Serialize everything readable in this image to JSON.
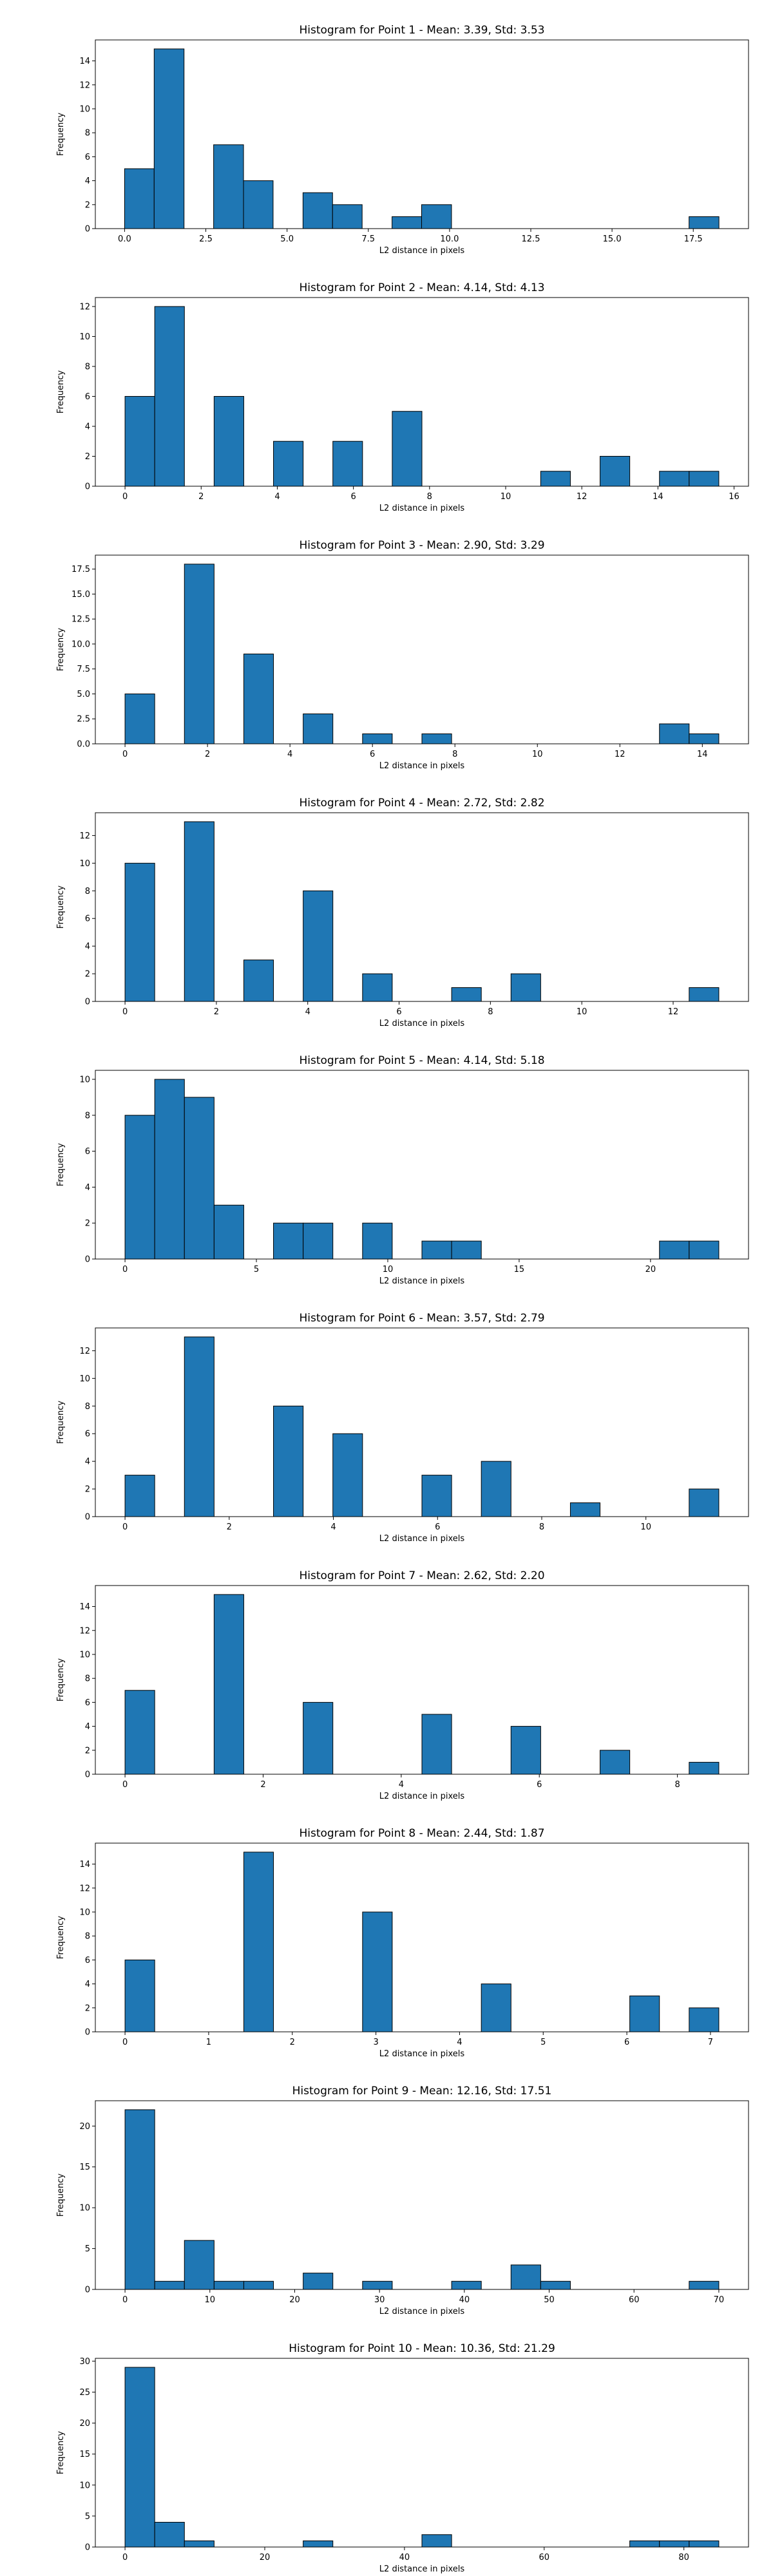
{
  "chart_data": [
    {
      "type": "bar",
      "title": "Histogram for Point 1 - Mean: 3.39, Std: 3.53",
      "xlabel": "L2 distance in pixels",
      "ylabel": "Frequency",
      "bin_edges": [
        0.0,
        0.91,
        1.83,
        2.74,
        3.66,
        4.57,
        5.49,
        6.4,
        7.31,
        8.23,
        9.14,
        10.06,
        10.97,
        11.89,
        12.8,
        13.71,
        14.63,
        15.54,
        16.46,
        17.37,
        18.29
      ],
      "values": [
        5,
        15,
        0,
        7,
        4,
        0,
        3,
        2,
        0,
        1,
        2,
        0,
        0,
        0,
        0,
        0,
        0,
        0,
        0,
        1
      ],
      "xlim": [
        -0.9,
        19.2
      ],
      "ylim": [
        0,
        15.75
      ],
      "xticks": [
        0.0,
        2.5,
        5.0,
        7.5,
        10.0,
        12.5,
        15.0,
        17.5
      ],
      "xtick_labels": [
        "0.0",
        "2.5",
        "5.0",
        "7.5",
        "10.0",
        "12.5",
        "15.0",
        "17.5"
      ],
      "yticks": [
        0,
        2,
        4,
        6,
        8,
        10,
        12,
        14
      ],
      "ytick_labels": [
        "0",
        "2",
        "4",
        "6",
        "8",
        "10",
        "12",
        "14"
      ]
    },
    {
      "type": "bar",
      "title": "Histogram for Point 2 - Mean: 4.14, Std: 4.13",
      "xlabel": "L2 distance in pixels",
      "ylabel": "Frequency",
      "bin_edges": [
        0.0,
        0.78,
        1.56,
        2.34,
        3.12,
        3.9,
        4.68,
        5.46,
        6.24,
        7.02,
        7.8,
        8.58,
        9.36,
        10.14,
        10.92,
        11.7,
        12.48,
        13.26,
        14.04,
        14.82,
        15.6
      ],
      "values": [
        6,
        12,
        0,
        6,
        0,
        3,
        0,
        3,
        0,
        5,
        0,
        0,
        0,
        0,
        1,
        0,
        2,
        0,
        1,
        1
      ],
      "xlim": [
        -0.78,
        16.38
      ],
      "ylim": [
        0,
        12.6
      ],
      "xticks": [
        0,
        2,
        4,
        6,
        8,
        10,
        12,
        14,
        16
      ],
      "xtick_labels": [
        "0",
        "2",
        "4",
        "6",
        "8",
        "10",
        "12",
        "14",
        "16"
      ],
      "yticks": [
        0,
        2,
        4,
        6,
        8,
        10,
        12
      ],
      "ytick_labels": [
        "0",
        "2",
        "4",
        "6",
        "8",
        "10",
        "12"
      ]
    },
    {
      "type": "bar",
      "title": "Histogram for Point 3 - Mean: 2.90, Std: 3.29",
      "xlabel": "L2 distance in pixels",
      "ylabel": "Frequency",
      "bin_edges": [
        0.0,
        0.72,
        1.44,
        2.16,
        2.88,
        3.6,
        4.32,
        5.04,
        5.76,
        6.48,
        7.2,
        7.92,
        8.64,
        9.36,
        10.08,
        10.8,
        11.52,
        12.24,
        12.96,
        13.68,
        14.4
      ],
      "values": [
        5,
        0,
        18,
        0,
        9,
        0,
        3,
        0,
        1,
        0,
        1,
        0,
        0,
        0,
        0,
        0,
        0,
        0,
        2,
        1
      ],
      "xlim": [
        -0.72,
        15.12
      ],
      "ylim": [
        0,
        18.9
      ],
      "xticks": [
        0,
        2,
        4,
        6,
        8,
        10,
        12,
        14
      ],
      "xtick_labels": [
        "0",
        "2",
        "4",
        "6",
        "8",
        "10",
        "12",
        "14"
      ],
      "yticks": [
        0,
        2.5,
        5,
        7.5,
        10,
        12.5,
        15,
        17.5
      ],
      "ytick_labels": [
        "0.0",
        "2.5",
        "5.0",
        "7.5",
        "10.0",
        "12.5",
        "15.0",
        "17.5"
      ]
    },
    {
      "type": "bar",
      "title": "Histogram for Point 4 - Mean: 2.72, Std: 2.82",
      "xlabel": "L2 distance in pixels",
      "ylabel": "Frequency",
      "bin_edges": [
        0.0,
        0.65,
        1.3,
        1.95,
        2.6,
        3.25,
        3.9,
        4.55,
        5.2,
        5.85,
        6.5,
        7.15,
        7.8,
        8.45,
        9.1,
        9.75,
        10.4,
        11.05,
        11.7,
        12.35,
        13.0
      ],
      "values": [
        10,
        0,
        13,
        0,
        3,
        0,
        8,
        0,
        2,
        0,
        0,
        1,
        0,
        2,
        0,
        0,
        0,
        0,
        0,
        1
      ],
      "xlim": [
        -0.65,
        13.65
      ],
      "ylim": [
        0,
        13.65
      ],
      "xticks": [
        0,
        2,
        4,
        6,
        8,
        10,
        12
      ],
      "xtick_labels": [
        "0",
        "2",
        "4",
        "6",
        "8",
        "10",
        "12"
      ],
      "yticks": [
        0,
        2,
        4,
        6,
        8,
        10,
        12
      ],
      "ytick_labels": [
        "0",
        "2",
        "4",
        "6",
        "8",
        "10",
        "12"
      ]
    },
    {
      "type": "bar",
      "title": "Histogram for Point 5 - Mean: 4.14, Std: 5.18",
      "xlabel": "L2 distance in pixels",
      "ylabel": "Frequency",
      "bin_edges": [
        0.0,
        1.13,
        2.26,
        3.39,
        4.52,
        5.65,
        6.78,
        7.91,
        9.04,
        10.17,
        11.3,
        12.43,
        13.56,
        14.69,
        15.82,
        16.95,
        18.08,
        19.21,
        20.34,
        21.47,
        22.6
      ],
      "values": [
        8,
        10,
        9,
        3,
        0,
        2,
        2,
        0,
        2,
        0,
        1,
        1,
        0,
        0,
        0,
        0,
        0,
        0,
        1,
        1
      ],
      "xlim": [
        -1.13,
        23.73
      ],
      "ylim": [
        0,
        10.5
      ],
      "xticks": [
        0,
        5,
        10,
        15,
        20
      ],
      "xtick_labels": [
        "0",
        "5",
        "10",
        "15",
        "20"
      ],
      "yticks": [
        0,
        2,
        4,
        6,
        8,
        10
      ],
      "ytick_labels": [
        "0",
        "2",
        "4",
        "6",
        "8",
        "10"
      ]
    },
    {
      "type": "bar",
      "title": "Histogram for Point 6 - Mean: 3.57, Std: 2.79",
      "xlabel": "L2 distance in pixels",
      "ylabel": "Frequency",
      "bin_edges": [
        0.0,
        0.57,
        1.14,
        1.71,
        2.28,
        2.85,
        3.42,
        3.99,
        4.56,
        5.13,
        5.7,
        6.27,
        6.84,
        7.41,
        7.98,
        8.55,
        9.12,
        9.69,
        10.26,
        10.83,
        11.4
      ],
      "values": [
        3,
        0,
        13,
        0,
        0,
        8,
        0,
        6,
        0,
        0,
        3,
        0,
        4,
        0,
        0,
        1,
        0,
        0,
        0,
        2
      ],
      "xlim": [
        -0.57,
        11.97
      ],
      "ylim": [
        0,
        13.65
      ],
      "xticks": [
        0,
        2,
        4,
        6,
        8,
        10
      ],
      "xtick_labels": [
        "0",
        "2",
        "4",
        "6",
        "8",
        "10"
      ],
      "yticks": [
        0,
        2,
        4,
        6,
        8,
        10,
        12
      ],
      "ytick_labels": [
        "0",
        "2",
        "4",
        "6",
        "8",
        "10",
        "12"
      ]
    },
    {
      "type": "bar",
      "title": "Histogram for Point 7 - Mean: 2.62, Std: 2.20",
      "xlabel": "L2 distance in pixels",
      "ylabel": "Frequency",
      "bin_edges": [
        0.0,
        0.43,
        0.86,
        1.29,
        1.72,
        2.15,
        2.58,
        3.01,
        3.44,
        3.87,
        4.3,
        4.73,
        5.16,
        5.59,
        6.02,
        6.45,
        6.88,
        7.31,
        7.74,
        8.17,
        8.6
      ],
      "values": [
        7,
        0,
        0,
        15,
        0,
        0,
        6,
        0,
        0,
        0,
        5,
        0,
        0,
        4,
        0,
        0,
        2,
        0,
        0,
        1
      ],
      "xlim": [
        -0.43,
        9.03
      ],
      "ylim": [
        0,
        15.75
      ],
      "xticks": [
        0,
        2,
        4,
        6,
        8
      ],
      "xtick_labels": [
        "0",
        "2",
        "4",
        "6",
        "8"
      ],
      "yticks": [
        0,
        2,
        4,
        6,
        8,
        10,
        12,
        14
      ],
      "ytick_labels": [
        "0",
        "2",
        "4",
        "6",
        "8",
        "10",
        "12",
        "14"
      ]
    },
    {
      "type": "bar",
      "title": "Histogram for Point 8 - Mean: 2.44, Std: 1.87",
      "xlabel": "L2 distance in pixels",
      "ylabel": "Frequency",
      "bin_edges": [
        0.0,
        0.355,
        0.71,
        1.065,
        1.42,
        1.775,
        2.13,
        2.485,
        2.84,
        3.195,
        3.55,
        3.905,
        4.26,
        4.615,
        4.97,
        5.325,
        5.68,
        6.035,
        6.39,
        6.745,
        7.1
      ],
      "values": [
        6,
        0,
        0,
        0,
        15,
        0,
        0,
        0,
        10,
        0,
        0,
        0,
        4,
        0,
        0,
        0,
        0,
        3,
        0,
        2
      ],
      "xlim": [
        -0.355,
        7.455
      ],
      "ylim": [
        0,
        15.75
      ],
      "xticks": [
        0,
        1,
        2,
        3,
        4,
        5,
        6,
        7
      ],
      "xtick_labels": [
        "0",
        "1",
        "2",
        "3",
        "4",
        "5",
        "6",
        "7"
      ],
      "yticks": [
        0,
        2,
        4,
        6,
        8,
        10,
        12,
        14
      ],
      "ytick_labels": [
        "0",
        "2",
        "4",
        "6",
        "8",
        "10",
        "12",
        "14"
      ]
    },
    {
      "type": "bar",
      "title": "Histogram for Point 9 - Mean: 12.16, Std: 17.51",
      "xlabel": "L2 distance in pixels",
      "ylabel": "Frequency",
      "bin_edges": [
        0.0,
        3.5,
        7.0,
        10.5,
        14.0,
        17.5,
        21.0,
        24.5,
        28.0,
        31.5,
        35.0,
        38.5,
        42.0,
        45.5,
        49.0,
        52.5,
        56.0,
        59.5,
        63.0,
        66.5,
        70.0
      ],
      "values": [
        22,
        1,
        6,
        1,
        1,
        0,
        2,
        0,
        1,
        0,
        0,
        1,
        0,
        3,
        1,
        0,
        0,
        0,
        0,
        1
      ],
      "xlim": [
        -3.5,
        73.5
      ],
      "ylim": [
        0,
        23.1
      ],
      "xticks": [
        0,
        10,
        20,
        30,
        40,
        50,
        60,
        70
      ],
      "xtick_labels": [
        "0",
        "10",
        "20",
        "30",
        "40",
        "50",
        "60",
        "70"
      ],
      "yticks": [
        0,
        5,
        10,
        15,
        20
      ],
      "ytick_labels": [
        "0",
        "5",
        "10",
        "15",
        "20"
      ]
    },
    {
      "type": "bar",
      "title": "Histogram for Point 10 - Mean: 10.36, Std: 21.29",
      "xlabel": "L2 distance in pixels",
      "ylabel": "Frequency",
      "bin_edges": [
        0.0,
        4.25,
        8.5,
        12.75,
        17.0,
        21.25,
        25.5,
        29.75,
        34.0,
        38.25,
        42.5,
        46.75,
        51.0,
        55.25,
        59.5,
        63.75,
        68.0,
        72.25,
        76.5,
        80.75,
        85.0
      ],
      "values": [
        29,
        4,
        1,
        0,
        0,
        0,
        1,
        0,
        0,
        0,
        2,
        0,
        0,
        0,
        0,
        0,
        0,
        1,
        1,
        1
      ],
      "xlim": [
        -4.25,
        89.25
      ],
      "ylim": [
        0,
        30.45
      ],
      "xticks": [
        0,
        20,
        40,
        60,
        80
      ],
      "xtick_labels": [
        "0",
        "20",
        "40",
        "60",
        "80"
      ],
      "yticks": [
        0,
        5,
        10,
        15,
        20,
        25,
        30
      ],
      "ytick_labels": [
        "0",
        "5",
        "10",
        "15",
        "20",
        "25",
        "30"
      ]
    }
  ],
  "colors": {
    "bar_fill": "#1f77b4",
    "bar_edge": "#000000",
    "axis": "#000000",
    "text": "#000000",
    "background": "#ffffff"
  }
}
